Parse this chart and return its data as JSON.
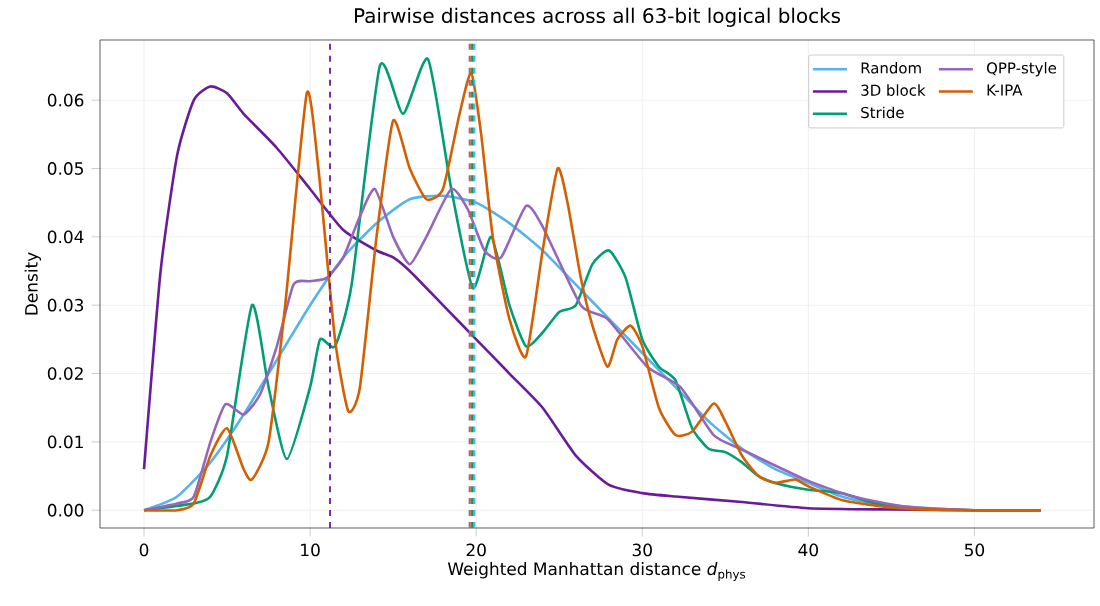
{
  "chart_data": {
    "type": "line",
    "title": "Pairwise distances across all 63-bit logical blocks",
    "xlabel": "Weighted Manhattan distance *d*$_{phys}$",
    "ylabel": "Density",
    "xlim": [
      -2.65,
      57.2
    ],
    "ylim": [
      -0.0026,
      0.0688
    ],
    "xticks": [
      0,
      10,
      20,
      30,
      40,
      50
    ],
    "yticks": [
      {
        "value": 0,
        "label": "0.00"
      },
      {
        "value": 0.01,
        "label": "0.01"
      },
      {
        "value": 0.02,
        "label": "0.02"
      },
      {
        "value": 0.03,
        "label": "0.03"
      },
      {
        "value": 0.04,
        "label": "0.04"
      },
      {
        "value": 0.05,
        "label": "0.05"
      },
      {
        "value": 0.06,
        "label": "0.06"
      }
    ],
    "grid": true,
    "legend": "top right",
    "marker": "none",
    "line_style": "solid",
    "series": [
      {
        "name": "Random",
        "color": "#56b4e9",
        "x": [
          0,
          2,
          4,
          6,
          8,
          10,
          12,
          14,
          16,
          18,
          20,
          22,
          24,
          26,
          28,
          30,
          32,
          34,
          36,
          38,
          40,
          42,
          44,
          46,
          50,
          54
        ],
        "values": [
          0,
          0.002,
          0.007,
          0.014,
          0.022,
          0.03,
          0.037,
          0.042,
          0.0455,
          0.046,
          0.045,
          0.042,
          0.038,
          0.033,
          0.028,
          0.023,
          0.018,
          0.013,
          0.009,
          0.006,
          0.004,
          0.002,
          0.001,
          0.0005,
          0,
          0
        ]
      },
      {
        "name": "3D block",
        "color": "#6a1b9a",
        "x": [
          0,
          1,
          2,
          3,
          4,
          5,
          6,
          8,
          10,
          12,
          14,
          15,
          16,
          18,
          20,
          22,
          24,
          26,
          28,
          30,
          32,
          36,
          40,
          45,
          50,
          54
        ],
        "values": [
          0.006,
          0.035,
          0.052,
          0.06,
          0.062,
          0.061,
          0.058,
          0.053,
          0.047,
          0.041,
          0.038,
          0.037,
          0.035,
          0.03,
          0.025,
          0.02,
          0.015,
          0.008,
          0.0037,
          0.0025,
          0.002,
          0.0012,
          0.0003,
          0.0001,
          0,
          0
        ]
      },
      {
        "name": "Stride",
        "color": "#009e73",
        "x": [
          0,
          3,
          4,
          5,
          6.5,
          7.5,
          8.6,
          10,
          10.6,
          11.5,
          12.5,
          14.2,
          15.6,
          17.1,
          18.5,
          19.8,
          20.9,
          22,
          23,
          24,
          25,
          26,
          27,
          28,
          29,
          30,
          31,
          32,
          33,
          34,
          35,
          36,
          37,
          38,
          40,
          42,
          44,
          46
        ],
        "values": [
          0,
          0.001,
          0.002,
          0.008,
          0.03,
          0.018,
          0.0075,
          0.018,
          0.025,
          0.024,
          0.033,
          0.065,
          0.058,
          0.066,
          0.047,
          0.0325,
          0.04,
          0.03,
          0.024,
          0.026,
          0.029,
          0.03,
          0.036,
          0.038,
          0.034,
          0.025,
          0.021,
          0.019,
          0.012,
          0.009,
          0.0085,
          0.007,
          0.005,
          0.004,
          0.003,
          0.0025,
          0.001,
          0.0003
        ]
      },
      {
        "name": "QPP-style",
        "color": "#9467bd",
        "x": [
          0,
          2,
          3,
          4,
          4.9,
          6,
          7,
          8,
          9,
          10,
          11,
          12,
          13,
          13.9,
          15,
          16,
          17,
          18.5,
          19.5,
          20.5,
          21.5,
          23,
          24,
          26.3,
          27.9,
          30.3,
          32.3,
          34.3,
          35.9,
          39.9,
          42.7,
          46,
          50,
          54
        ],
        "values": [
          0,
          0.001,
          0.002,
          0.01,
          0.0155,
          0.014,
          0.017,
          0.024,
          0.033,
          0.0335,
          0.034,
          0.037,
          0.043,
          0.047,
          0.04,
          0.036,
          0.04,
          0.047,
          0.044,
          0.038,
          0.037,
          0.0445,
          0.0415,
          0.03,
          0.028,
          0.021,
          0.018,
          0.011,
          0.009,
          0.0044,
          0.002,
          0.0005,
          0,
          0
        ]
      },
      {
        "name": "K-IPA",
        "color": "#d55e00",
        "x": [
          0,
          2,
          3,
          4,
          5,
          6,
          6.5,
          7.5,
          8.5,
          9.8,
          10.5,
          11.5,
          12.3,
          13,
          14,
          15,
          16,
          17,
          18,
          19,
          19.7,
          20.3,
          21,
          22,
          23,
          24,
          24.9,
          25.5,
          26.3,
          27,
          27.9,
          28.5,
          29.3,
          30,
          31,
          32,
          33,
          34.3,
          35,
          36,
          37,
          38,
          39.2,
          40,
          42,
          44,
          46,
          50,
          54
        ],
        "values": [
          0,
          0,
          0.001,
          0.008,
          0.012,
          0.006,
          0.0045,
          0.01,
          0.03,
          0.061,
          0.05,
          0.025,
          0.0145,
          0.018,
          0.04,
          0.057,
          0.05,
          0.0455,
          0.047,
          0.058,
          0.064,
          0.055,
          0.04,
          0.028,
          0.0225,
          0.038,
          0.05,
          0.045,
          0.034,
          0.027,
          0.021,
          0.025,
          0.027,
          0.024,
          0.015,
          0.011,
          0.0115,
          0.0156,
          0.013,
          0.008,
          0.005,
          0.004,
          0.0045,
          0.0035,
          0.0015,
          0.0007,
          0.0002,
          0,
          0
        ]
      }
    ],
    "ref_lines": [
      {
        "axis": "x",
        "value": 11.2,
        "color": "#6a1b9a",
        "line_style": "dashed"
      },
      {
        "axis": "x",
        "value": 19.6,
        "color": "#9467bd",
        "line_style": "dashed"
      },
      {
        "axis": "x",
        "value": 19.7,
        "color": "#d55e00",
        "line_style": "dashed"
      },
      {
        "axis": "x",
        "value": 19.8,
        "color": "#009e73",
        "line_style": "dashed"
      },
      {
        "axis": "x",
        "value": 19.9,
        "color": "#56b4e9",
        "line_style": "dashed"
      }
    ]
  }
}
